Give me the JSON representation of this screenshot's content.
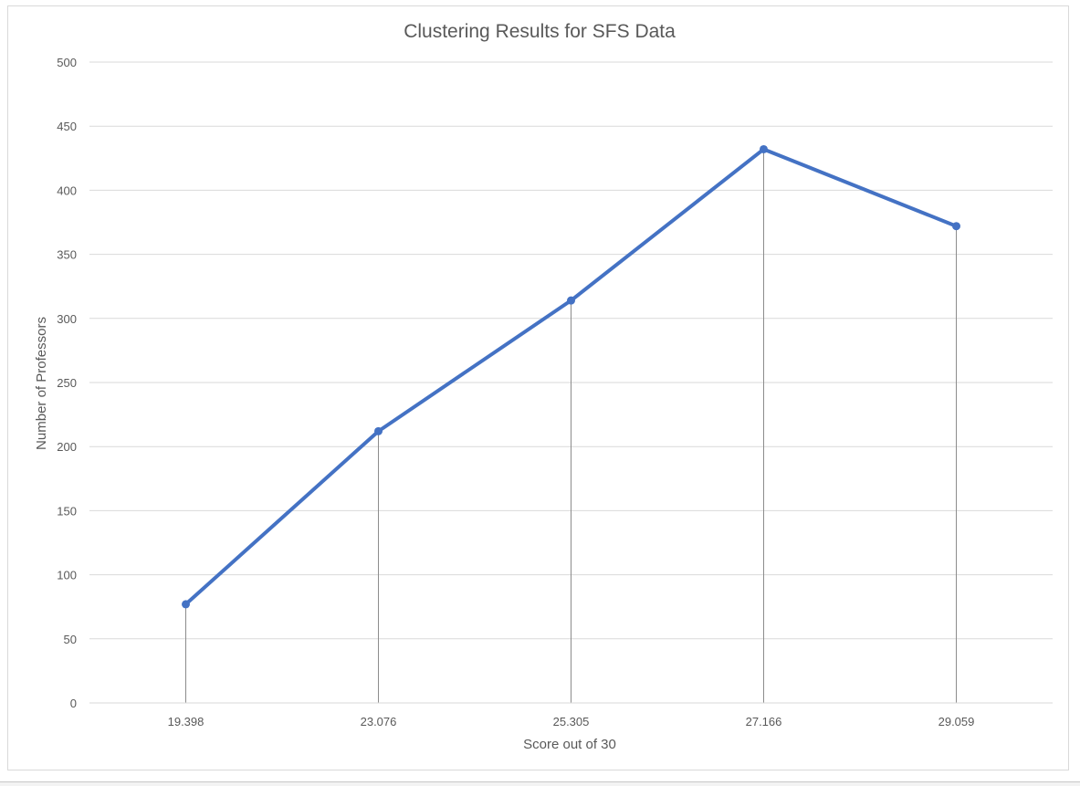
{
  "chart_data": {
    "type": "line",
    "title": "Clustering Results for SFS Data",
    "xlabel": "Score out of 30",
    "ylabel": "Number of Professors",
    "categories": [
      "19.398",
      "23.076",
      "25.305",
      "27.166",
      "29.059"
    ],
    "values": [
      77,
      212,
      314,
      432,
      372
    ],
    "ylim": [
      0,
      500
    ],
    "yticks": [
      "0",
      "50",
      "100",
      "150",
      "200",
      "250",
      "300",
      "350",
      "400",
      "450",
      "500"
    ],
    "grid": "horizontal",
    "drop_lines": true,
    "markers": true,
    "series_color": "#4472c4",
    "grid_color": "#d9d9d9",
    "drop_line_color": "#8c8c8c",
    "text_color": "#595959"
  }
}
